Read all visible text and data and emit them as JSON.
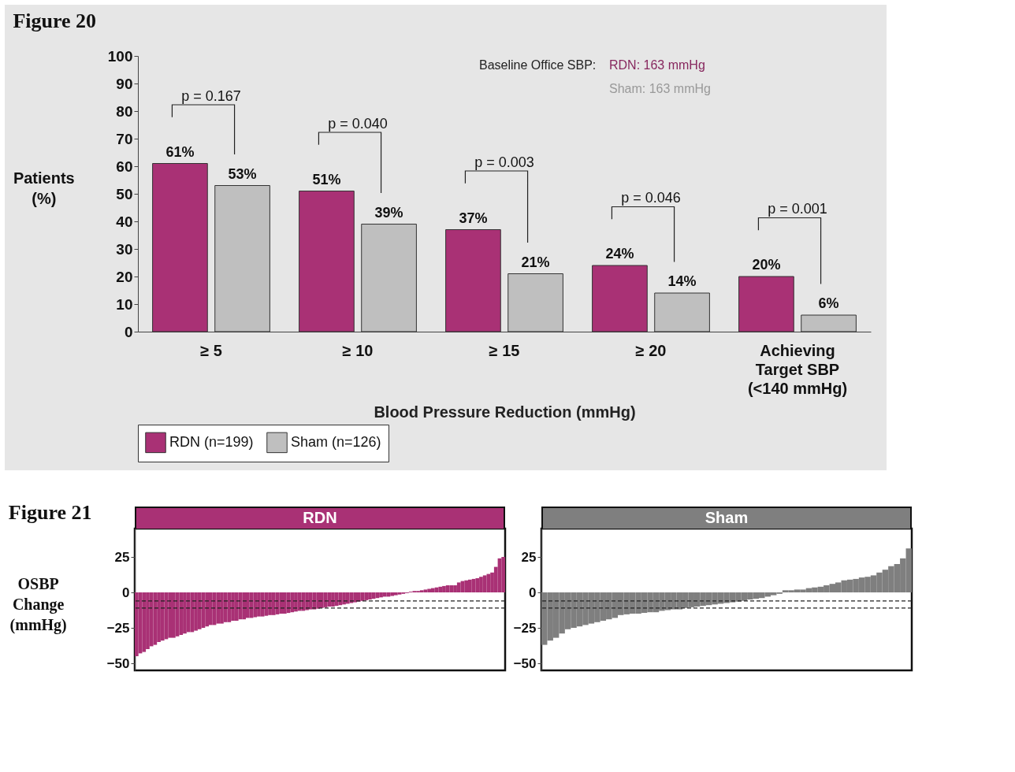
{
  "chart_data": [
    {
      "type": "bar",
      "title": "Figure 20",
      "categories": [
        "≥ 5",
        "≥ 10",
        "≥ 15",
        "≥ 20",
        "Achieving Target SBP (<140 mmHg)"
      ],
      "series": [
        {
          "name": "RDN (n=199)",
          "color": "#a93175",
          "values": [
            61,
            51,
            37,
            24,
            20
          ],
          "value_labels": [
            "61%",
            "51%",
            "37%",
            "24%",
            "20%"
          ]
        },
        {
          "name": "Sham (n=126)",
          "color": "#bfbfbf",
          "values": [
            53,
            39,
            21,
            14,
            6
          ],
          "value_labels": [
            "53%",
            "39%",
            "21%",
            "14%",
            "6%"
          ]
        }
      ],
      "xlabel": "Blood Pressure Reduction (mmHg)",
      "ylabel": "Patients (%)",
      "ylim": [
        0,
        100
      ],
      "yticks": [
        0,
        10,
        20,
        30,
        40,
        50,
        60,
        70,
        80,
        90,
        100
      ],
      "legend": "bottom left",
      "annotations": [
        "p = 0.167",
        "p = 0.040",
        "p = 0.003",
        "p = 0.046",
        "p = 0.001",
        "Baseline Office SBP:",
        "RDN: 163 mmHg",
        "Sham: 163 mmHg"
      ]
    },
    {
      "type": "bar",
      "title": "Figure 21",
      "ylabel": "OSBP Change (mmHg)",
      "ylim": [
        -55,
        45
      ],
      "yticks": [
        -50,
        -25,
        0,
        25
      ],
      "tick_labels": "y",
      "categories": [
        null,
        null,
        null,
        null,
        null,
        null,
        null,
        null,
        null,
        null,
        null,
        null,
        null,
        null,
        null,
        null,
        null,
        null,
        null,
        null,
        null,
        null,
        null,
        null,
        null,
        null,
        null,
        null,
        null,
        null,
        null,
        null,
        null,
        null,
        null,
        null,
        null,
        null,
        null,
        null,
        null,
        null,
        null,
        null,
        null,
        null,
        null,
        null,
        null,
        null,
        null,
        null,
        null,
        null,
        null,
        null,
        null,
        null,
        null,
        null,
        null,
        null,
        null,
        null,
        null,
        null,
        null,
        null,
        null,
        null,
        null,
        null,
        null,
        null,
        null,
        null,
        null,
        null,
        null,
        null,
        null,
        null,
        null,
        null,
        null,
        null,
        null,
        null,
        null,
        null,
        null,
        null,
        null,
        null,
        null,
        null,
        null,
        null,
        null,
        null
      ],
      "series": [
        {
          "name": "RDN",
          "color": "#a93175",
          "values": [
            -45,
            -43,
            -42,
            -40,
            -38,
            -37,
            -35,
            -34,
            -33,
            -32,
            -32,
            -31,
            -30,
            -29,
            -28,
            -28,
            -27,
            -26,
            -25,
            -24,
            -23,
            -23,
            -22,
            -22,
            -21,
            -21,
            -20,
            -20,
            -19,
            -19,
            -18,
            -18,
            -17.5,
            -17,
            -17,
            -16.5,
            -16,
            -16,
            -15.5,
            -15,
            -15,
            -14.5,
            -14,
            -13.5,
            -13,
            -13,
            -12.5,
            -12,
            -12,
            -11.5,
            -11,
            -10.5,
            -10,
            -10,
            -9.5,
            -9,
            -8.5,
            -8,
            -7.5,
            -7,
            -6.5,
            -6,
            -5.5,
            -5,
            -4.5,
            -4,
            -3.5,
            -3,
            -3,
            -2.5,
            -2,
            -1.5,
            -1,
            -0.5,
            0.5,
            1,
            1,
            1.5,
            2,
            2.5,
            3,
            3.5,
            4,
            4.5,
            5,
            5,
            5,
            7,
            8,
            8.5,
            9,
            9.5,
            10,
            11,
            12,
            13,
            14,
            18,
            24,
            25
          ]
        }
      ],
      "ref_lines": [
        {
          "axis": "y",
          "value": -6,
          "line_style": "dashed",
          "color": "#222222"
        },
        {
          "axis": "y",
          "value": -11,
          "line_style": "dashed",
          "color": "#222222"
        }
      ]
    },
    {
      "type": "bar",
      "ylim": [
        -55,
        45
      ],
      "yticks": [
        -50,
        -25,
        0,
        25
      ],
      "tick_labels": "y",
      "categories": [
        null,
        null,
        null,
        null,
        null,
        null,
        null,
        null,
        null,
        null,
        null,
        null,
        null,
        null,
        null,
        null,
        null,
        null,
        null,
        null,
        null,
        null,
        null,
        null,
        null,
        null,
        null,
        null,
        null,
        null,
        null,
        null,
        null,
        null,
        null,
        null,
        null,
        null,
        null,
        null,
        null,
        null,
        null,
        null,
        null,
        null,
        null,
        null,
        null,
        null,
        null,
        null,
        null,
        null,
        null,
        null,
        null,
        null,
        null,
        null,
        null,
        null,
        null
      ],
      "series": [
        {
          "name": "Sham",
          "color": "#7f7f7f",
          "values": [
            -37,
            -34,
            -32,
            -29,
            -26,
            -25,
            -24,
            -23,
            -22,
            -21,
            -20,
            -19,
            -18,
            -16,
            -15.5,
            -15,
            -15,
            -14.5,
            -14,
            -14,
            -13,
            -12.5,
            -12,
            -12,
            -11,
            -10.5,
            -10,
            -9.5,
            -9,
            -8.5,
            -8,
            -7.5,
            -7,
            -6.5,
            -6,
            -5,
            -4.5,
            -4,
            -3,
            -2,
            -1,
            1.5,
            1.5,
            2,
            2,
            3,
            3.5,
            4,
            5,
            6,
            7,
            8.5,
            9,
            9.5,
            10.5,
            11,
            12,
            14,
            16,
            18.5,
            20,
            24,
            31
          ]
        }
      ],
      "ref_lines": [
        {
          "axis": "y",
          "value": -6,
          "line_style": "dashed",
          "color": "#222222"
        },
        {
          "axis": "y",
          "value": -11,
          "line_style": "dashed",
          "color": "#222222"
        }
      ]
    }
  ]
}
